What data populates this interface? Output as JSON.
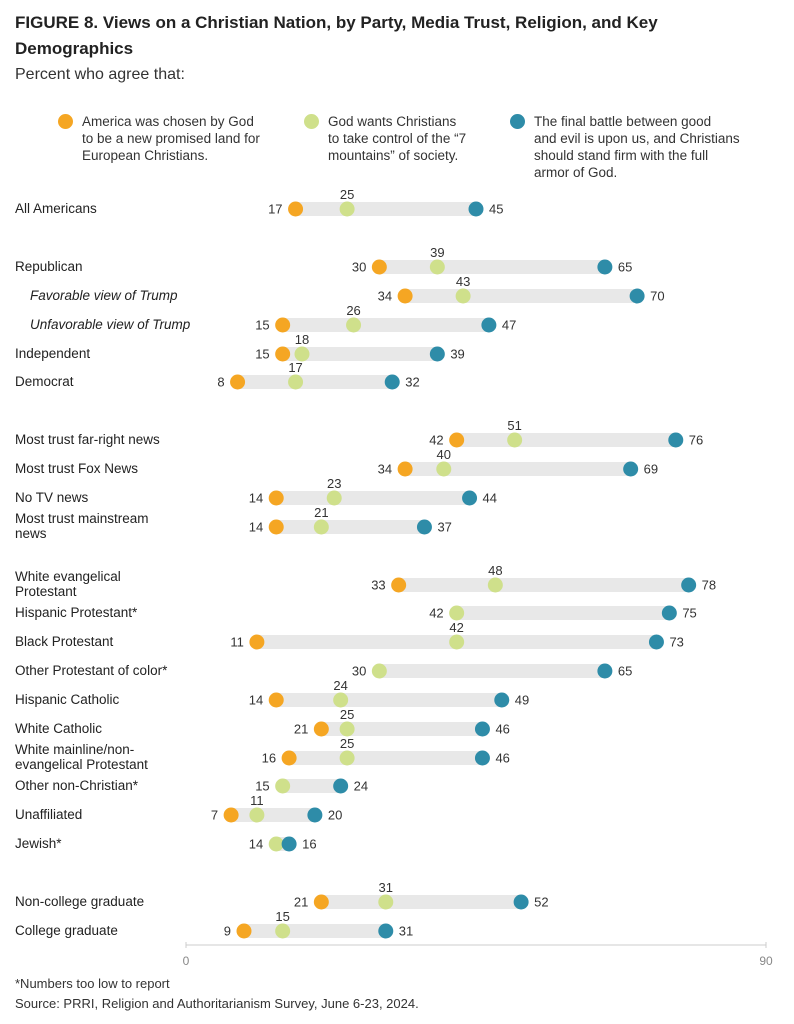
{
  "title": "FIGURE 8.  Views on a Christian Nation, by Party, Media Trust, Religion, and Key Demographics",
  "subtitle": "Percent who agree that:",
  "legend": [
    {
      "text": "America was chosen by God\nto be a new promised land for\nEuropean Christians.",
      "color": "#F5A623"
    },
    {
      "text": "God wants Christians\nto take control of the “7\nmountains” of society.",
      "color": "#CFE08B"
    },
    {
      "text": "The final battle between good\nand evil is upon us, and Christians\nshould stand firm with the full\narmor of God.",
      "color": "#2E8CA8"
    }
  ],
  "chart_data": {
    "type": "dot",
    "xlim": [
      0,
      90
    ],
    "tick_labels": [
      "0",
      "90"
    ],
    "series": [
      {
        "name": "America was chosen by God to be a new promised land for European Christians.",
        "color": "#F5A623"
      },
      {
        "name": "God wants Christians to take control of the “7 mountains” of society.",
        "color": "#CFE08B"
      },
      {
        "name": "The final battle between good and evil is upon us, and Christians should stand firm with the full armor of God.",
        "color": "#2E8CA8"
      }
    ],
    "rows": [
      {
        "label": "All Americans",
        "values": [
          17,
          25,
          45
        ]
      },
      {
        "label": "Republican",
        "values": [
          30,
          39,
          65
        ]
      },
      {
        "label": "Favorable view of Trump",
        "values": [
          34,
          43,
          70
        ],
        "sub": true
      },
      {
        "label": "Unfavorable view of Trump",
        "values": [
          15,
          26,
          47
        ],
        "sub": true
      },
      {
        "label": "Independent",
        "values": [
          15,
          18,
          39
        ]
      },
      {
        "label": "Democrat",
        "values": [
          8,
          17,
          32
        ]
      },
      {
        "label": "Most trust far-right news",
        "values": [
          42,
          51,
          76
        ]
      },
      {
        "label": "Most trust Fox News",
        "values": [
          34,
          40,
          69
        ]
      },
      {
        "label": "No TV news",
        "values": [
          14,
          23,
          44
        ]
      },
      {
        "label": "Most trust mainstream\nnews",
        "values": [
          14,
          21,
          37
        ]
      },
      {
        "label": "White evangelical\nProtestant",
        "values": [
          33,
          48,
          78
        ]
      },
      {
        "label": "Hispanic Protestant*",
        "values": [
          null,
          42,
          75
        ]
      },
      {
        "label": "Black Protestant",
        "values": [
          11,
          42,
          73
        ]
      },
      {
        "label": "Other Protestant of color*",
        "values": [
          null,
          30,
          65
        ]
      },
      {
        "label": "Hispanic Catholic",
        "values": [
          14,
          24,
          49
        ]
      },
      {
        "label": "White Catholic",
        "values": [
          21,
          25,
          46
        ]
      },
      {
        "label": "White mainline/non-\nevangelical Protestant",
        "values": [
          16,
          25,
          46
        ]
      },
      {
        "label": "Other non-Christian*",
        "values": [
          null,
          15,
          24
        ]
      },
      {
        "label": "Unaffiliated",
        "values": [
          7,
          11,
          20
        ]
      },
      {
        "label": "Jewish*",
        "values": [
          null,
          14,
          16
        ]
      },
      {
        "label": "Non-college graduate",
        "values": [
          21,
          31,
          52
        ]
      },
      {
        "label": "College graduate",
        "values": [
          9,
          15,
          31
        ]
      }
    ]
  },
  "footnote": "*Numbers too low to report",
  "source": "Source: PRRI, Religion and Authoritarianism Survey, June 6-23, 2024."
}
